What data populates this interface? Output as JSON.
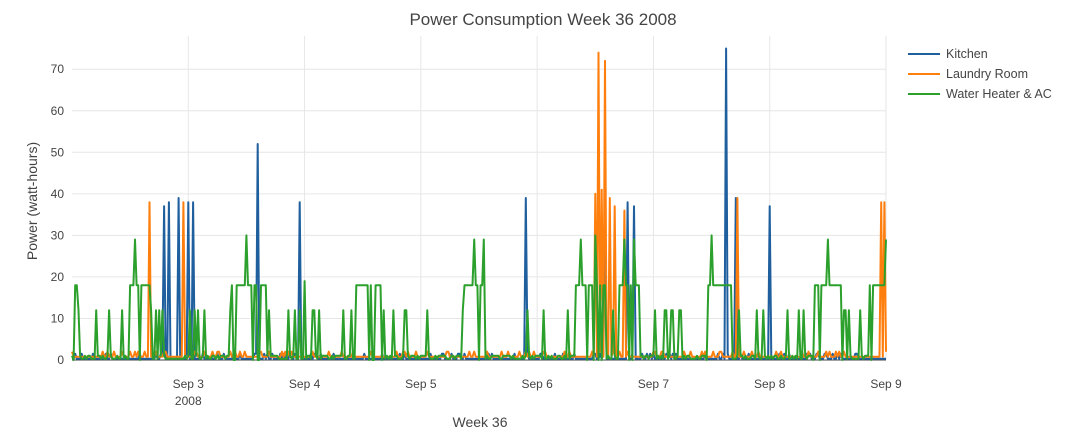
{
  "chart_data": {
    "type": "line",
    "title": "Power Consumption Week 36 2008",
    "xlabel": "Week 36",
    "ylabel": "Power (watt-hours)",
    "xlim": [
      "2008-09-02",
      "2008-09-09"
    ],
    "ylim": [
      0,
      78
    ],
    "grid": true,
    "legend_position": "top-right",
    "x_ticks": [
      {
        "date": "2008-09-03",
        "label": "Sep 3",
        "sublabel": "2008"
      },
      {
        "date": "2008-09-04",
        "label": "Sep 4",
        "sublabel": ""
      },
      {
        "date": "2008-09-05",
        "label": "Sep 5",
        "sublabel": ""
      },
      {
        "date": "2008-09-06",
        "label": "Sep 6",
        "sublabel": ""
      },
      {
        "date": "2008-09-07",
        "label": "Sep 7",
        "sublabel": ""
      },
      {
        "date": "2008-09-08",
        "label": "Sep 8",
        "sublabel": ""
      },
      {
        "date": "2008-09-09",
        "label": "Sep 9",
        "sublabel": ""
      }
    ],
    "y_ticks": [
      0,
      10,
      20,
      30,
      40,
      50,
      60,
      70
    ],
    "series": [
      {
        "name": "Kitchen",
        "color": "#1f5f9e",
        "baseline": 0.3,
        "points": [
          [
            "2008-09-02 19:00",
            37
          ],
          [
            "2008-09-02 20:00",
            38
          ],
          [
            "2008-09-02 22:00",
            39
          ],
          [
            "2008-09-02 22:30",
            39
          ],
          [
            "2008-09-03 00:00",
            38
          ],
          [
            "2008-09-03 01:00",
            38
          ],
          [
            "2008-09-03 01:30",
            38
          ],
          [
            "2008-09-03 14:15",
            52
          ],
          [
            "2008-09-03 22:30",
            37
          ],
          [
            "2008-09-03 23:00",
            38
          ],
          [
            "2008-09-04 21:30",
            38
          ],
          [
            "2008-09-04 21:50",
            36
          ],
          [
            "2008-09-04 22:10",
            37
          ],
          [
            "2008-09-05 00:30",
            38
          ],
          [
            "2008-09-05 21:45",
            39
          ],
          [
            "2008-09-06 14:00",
            37
          ],
          [
            "2008-09-06 16:30",
            37
          ],
          [
            "2008-09-06 18:40",
            38
          ],
          [
            "2008-09-06 20:00",
            37
          ],
          [
            "2008-09-07 15:00",
            75
          ],
          [
            "2008-09-07 17:00",
            39
          ],
          [
            "2008-09-07 22:30",
            36
          ],
          [
            "2008-09-08 00:00",
            37
          ]
        ]
      },
      {
        "name": "Laundry Room",
        "color": "#ff7f0e",
        "baseline": 0.8,
        "points": [
          [
            "2008-09-02 16:00",
            38
          ],
          [
            "2008-09-02 23:00",
            38
          ],
          [
            "2008-09-03 11:30",
            36
          ],
          [
            "2008-09-03 13:30",
            37
          ],
          [
            "2008-09-06 12:00",
            40
          ],
          [
            "2008-09-06 12:45",
            74
          ],
          [
            "2008-09-06 13:20",
            41
          ],
          [
            "2008-09-06 14:00",
            72
          ],
          [
            "2008-09-06 15:00",
            39
          ],
          [
            "2008-09-06 16:00",
            37
          ],
          [
            "2008-09-06 17:10",
            74
          ],
          [
            "2008-09-06 18:00",
            36
          ],
          [
            "2008-09-07 17:15",
            39
          ],
          [
            "2008-09-08 23:00",
            38
          ],
          [
            "2008-09-08 23:40",
            38
          ]
        ]
      },
      {
        "name": "Water Heater & AC",
        "color": "#2ca02c",
        "periodic_peak": 12,
        "plateau_level": 18,
        "plateaus": [
          [
            "2008-09-02 00:05",
            "2008-09-02 01:10"
          ],
          [
            "2008-09-02 12:00",
            "2008-09-02 16:00"
          ],
          [
            "2008-09-03 09:00",
            "2008-09-03 16:00"
          ],
          [
            "2008-09-04 10:30",
            "2008-09-04 16:00"
          ],
          [
            "2008-09-05 09:00",
            "2008-09-05 13:00"
          ],
          [
            "2008-09-06 08:00",
            "2008-09-06 14:00"
          ],
          [
            "2008-09-06 17:00",
            "2008-09-06 21:00"
          ],
          [
            "2008-09-07 11:00",
            "2008-09-07 16:00"
          ],
          [
            "2008-09-08 09:00",
            "2008-09-08 15:00"
          ],
          [
            "2008-09-08 20:30",
            "2008-09-09 00:00"
          ]
        ],
        "peaks": [
          [
            "2008-09-02 13:00",
            29
          ],
          [
            "2008-09-02 15:30",
            29
          ],
          [
            "2008-09-03 10:30",
            29
          ],
          [
            "2008-09-03 12:00",
            30
          ],
          [
            "2008-09-03 14:30",
            30
          ],
          [
            "2008-09-04 00:00",
            19
          ],
          [
            "2008-09-04 11:30",
            29
          ],
          [
            "2008-09-04 13:30",
            29
          ],
          [
            "2008-09-05 11:00",
            29
          ],
          [
            "2008-09-05 13:00",
            29
          ],
          [
            "2008-09-06 09:00",
            29
          ],
          [
            "2008-09-06 12:00",
            30
          ],
          [
            "2008-09-06 18:00",
            29
          ],
          [
            "2008-09-06 20:00",
            29
          ],
          [
            "2008-09-07 12:00",
            30
          ],
          [
            "2008-09-07 14:30",
            29
          ],
          [
            "2008-09-08 09:30",
            29
          ],
          [
            "2008-09-08 12:00",
            29
          ],
          [
            "2008-09-08 14:30",
            29
          ],
          [
            "2008-09-09 00:00",
            29
          ]
        ]
      }
    ]
  }
}
